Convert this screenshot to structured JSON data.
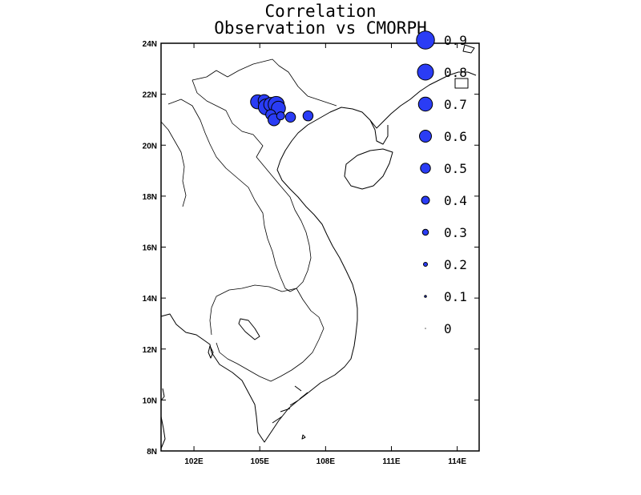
{
  "title": {
    "line1": "Correlation",
    "line2": "Observation vs CMORPH"
  },
  "axes": {
    "lon_range": [
      100.5,
      115
    ],
    "lat_range": [
      8,
      24
    ],
    "x_ticks": [
      {
        "value": 102,
        "label": "102E"
      },
      {
        "value": 105,
        "label": "105E"
      },
      {
        "value": 108,
        "label": "108E"
      },
      {
        "value": 111,
        "label": "111E"
      },
      {
        "value": 114,
        "label": "114E"
      }
    ],
    "y_ticks": [
      {
        "value": 8,
        "label": "8N"
      },
      {
        "value": 10,
        "label": "10N"
      },
      {
        "value": 12,
        "label": "12N"
      },
      {
        "value": 14,
        "label": "14N"
      },
      {
        "value": 16,
        "label": "16N"
      },
      {
        "value": 18,
        "label": "18N"
      },
      {
        "value": 20,
        "label": "20N"
      },
      {
        "value": 22,
        "label": "22N"
      },
      {
        "value": 24,
        "label": "24N"
      }
    ]
  },
  "colors": {
    "marker_fill": "#2a3cf5",
    "marker_stroke": "#000000"
  },
  "legend": {
    "placement": "right",
    "items": [
      {
        "value": 0.9,
        "label": "0.9"
      },
      {
        "value": 0.8,
        "label": "0.8"
      },
      {
        "value": 0.7,
        "label": "0.7"
      },
      {
        "value": 0.6,
        "label": "0.6"
      },
      {
        "value": 0.5,
        "label": "0.5"
      },
      {
        "value": 0.4,
        "label": "0.4"
      },
      {
        "value": 0.3,
        "label": "0.3"
      },
      {
        "value": 0.2,
        "label": "0.2"
      },
      {
        "value": 0.1,
        "label": "0.1"
      },
      {
        "value": 0.0,
        "label": "0"
      }
    ]
  },
  "stations": [
    {
      "lon": 104.9,
      "lat": 21.7,
      "value": 0.7
    },
    {
      "lon": 105.2,
      "lat": 21.75,
      "value": 0.6
    },
    {
      "lon": 105.3,
      "lat": 21.5,
      "value": 0.8
    },
    {
      "lon": 105.5,
      "lat": 21.6,
      "value": 0.7
    },
    {
      "lon": 105.75,
      "lat": 21.6,
      "value": 0.8
    },
    {
      "lon": 105.85,
      "lat": 21.45,
      "value": 0.7
    },
    {
      "lon": 105.5,
      "lat": 21.2,
      "value": 0.5
    },
    {
      "lon": 105.65,
      "lat": 21.0,
      "value": 0.6
    },
    {
      "lon": 105.95,
      "lat": 21.15,
      "value": 0.4
    },
    {
      "lon": 106.4,
      "lat": 21.1,
      "value": 0.5
    },
    {
      "lon": 107.2,
      "lat": 21.15,
      "value": 0.5
    }
  ]
}
